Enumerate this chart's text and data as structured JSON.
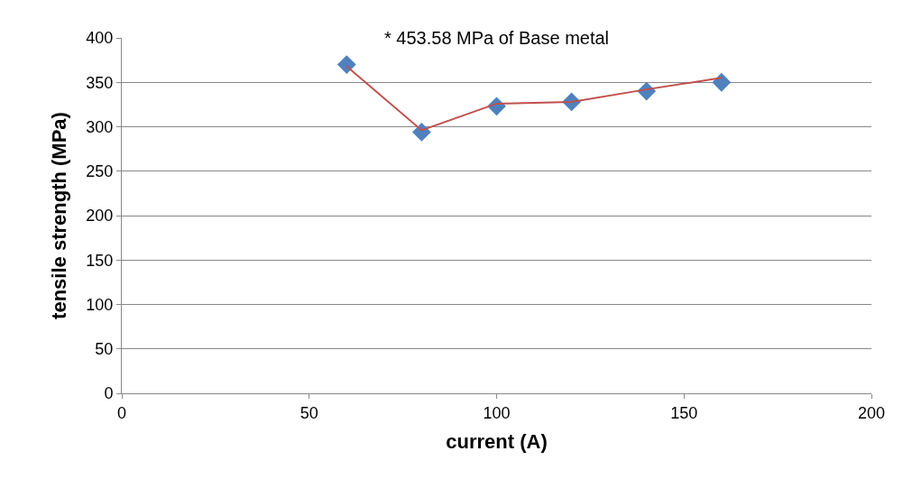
{
  "chart_data": {
    "type": "scatter",
    "xlabel": "current (A)",
    "ylabel": "tensile strength (MPa)",
    "annotations": [
      "* 453.58 MPa of Base metal"
    ],
    "x": [
      60,
      80,
      100,
      120,
      140,
      160
    ],
    "series": [
      {
        "color": "#4f81bd",
        "marker": "diamond",
        "values": [
          370,
          294,
          323,
          328,
          340,
          350
        ]
      },
      {
        "type": "line",
        "color": "#c0504d",
        "marker": "none",
        "values": [
          368,
          296,
          326,
          328,
          342,
          355
        ]
      }
    ],
    "xlim": [
      0,
      200
    ],
    "xticks": [
      0,
      50,
      100,
      150,
      200
    ],
    "ylim": [
      0,
      400
    ],
    "yticks": [
      0,
      50,
      100,
      150,
      200,
      250,
      300,
      350,
      400
    ],
    "grid": "y",
    "legend": false
  }
}
